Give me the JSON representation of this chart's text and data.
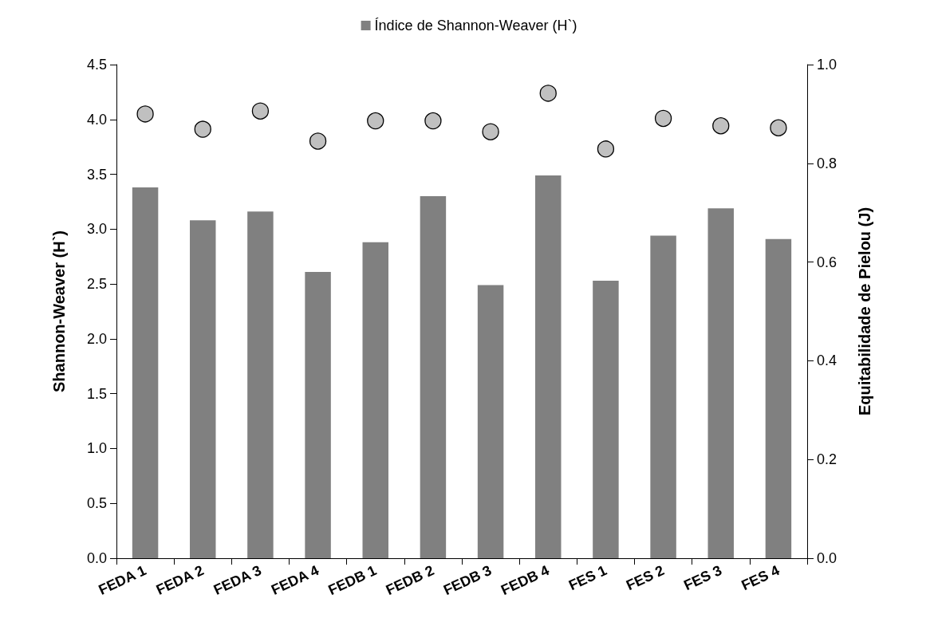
{
  "chart_data": {
    "type": "bar",
    "categories": [
      "FEDA 1",
      "FEDA 2",
      "FEDA 3",
      "FEDA 4",
      "FEDB 1",
      "FEDB 2",
      "FEDB 3",
      "FEDB 4",
      "FES 1",
      "FES 2",
      "FES 3",
      "FES 4"
    ],
    "series": [
      {
        "name": "Índice de Shannon-Weaver (H`)",
        "color": "#808080",
        "values": [
          3.38,
          3.08,
          3.16,
          2.61,
          2.88,
          3.3,
          2.49,
          3.49,
          2.53,
          2.94,
          3.19,
          2.91
        ]
      },
      {
        "type": "scatter",
        "axis": "y2",
        "color": "#c0c0c0",
        "marker": "circle",
        "values": [
          0.9,
          0.869,
          0.906,
          0.845,
          0.886,
          0.886,
          0.864,
          0.942,
          0.829,
          0.891,
          0.876,
          0.872
        ]
      }
    ],
    "ylabel": "Shannon-Weaver (H`)",
    "y2label": "Equitabilidade de Pielou (J)",
    "ylim": [
      0,
      4.5
    ],
    "yticks": [
      {
        "value": 0,
        "label": "0.0"
      },
      0.5,
      {
        "value": 1,
        "label": "1.0"
      },
      1.5,
      {
        "value": 2,
        "label": "2.0"
      },
      2.5,
      {
        "value": 3,
        "label": "3.0"
      },
      3.5,
      {
        "value": 4,
        "label": "4.0"
      },
      4.5
    ],
    "y2lim": [
      0,
      1
    ],
    "y2ticks": [
      {
        "value": 0,
        "label": "0.0"
      },
      0.2,
      0.4,
      0.6,
      0.8,
      {
        "value": 1,
        "label": "1.0"
      }
    ],
    "legend": "top",
    "grid": false
  }
}
